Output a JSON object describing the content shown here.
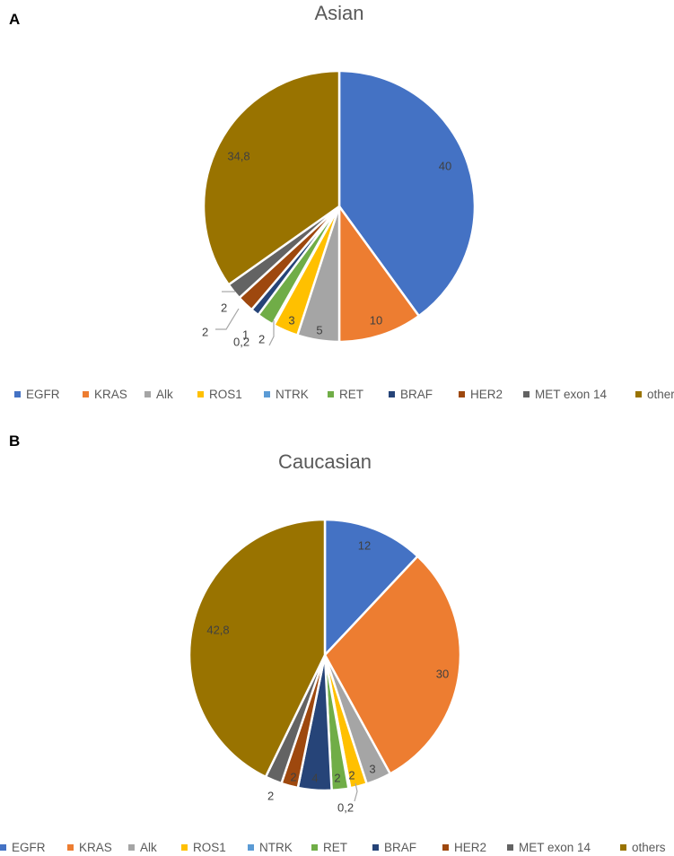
{
  "panels": [
    {
      "letter": "A",
      "chart_data": {
        "type": "pie",
        "title": "Asian",
        "categories": [
          "EGFR",
          "KRAS",
          "Alk",
          "ROS1",
          "NTRK",
          "RET",
          "BRAF",
          "HER2",
          "MET exon 14",
          "others"
        ],
        "values": [
          40,
          10,
          5,
          3,
          0.2,
          2,
          1,
          2,
          2,
          34.8
        ],
        "value_labels": [
          "40",
          "10",
          "5",
          "3",
          "0,2",
          "2",
          "1",
          "2",
          "2",
          "34,8"
        ],
        "colors": [
          "#4472C4",
          "#ED7D31",
          "#A5A5A5",
          "#FFC000",
          "#5B9BD5",
          "#70AD47",
          "#264478",
          "#9E480E",
          "#636363",
          "#997300"
        ],
        "legend_position": "bottom"
      }
    },
    {
      "letter": "B",
      "chart_data": {
        "type": "pie",
        "title": "Caucasian",
        "categories": [
          "EGFR",
          "KRAS",
          "Alk",
          "ROS1",
          "NTRK",
          "RET",
          "BRAF",
          "HER2",
          "MET exon 14",
          "others"
        ],
        "values": [
          12,
          30,
          3,
          2,
          0.2,
          2,
          4,
          2,
          2,
          42.8
        ],
        "value_labels": [
          "12",
          "30",
          "3",
          "2",
          "0,2",
          "2",
          "4",
          "2",
          "2",
          "42,8"
        ],
        "colors": [
          "#4472C4",
          "#ED7D31",
          "#A5A5A5",
          "#FFC000",
          "#5B9BD5",
          "#70AD47",
          "#264478",
          "#9E480E",
          "#636363",
          "#997300"
        ],
        "legend_position": "bottom"
      }
    }
  ]
}
